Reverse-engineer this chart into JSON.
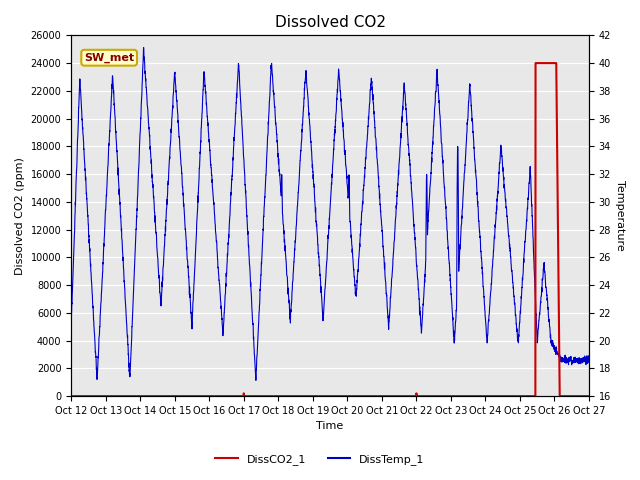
{
  "title": "Dissolved CO2",
  "ylabel_left": "Dissolved CO2 (ppm)",
  "ylabel_right": "Temperature",
  "xlabel": "Time",
  "ylim_left": [
    0,
    26000
  ],
  "ylim_right": [
    16,
    42
  ],
  "yticks_left": [
    0,
    2000,
    4000,
    6000,
    8000,
    10000,
    12000,
    14000,
    16000,
    18000,
    20000,
    22000,
    24000,
    26000
  ],
  "yticks_right": [
    16,
    18,
    20,
    22,
    24,
    26,
    28,
    30,
    32,
    34,
    36,
    38,
    40,
    42
  ],
  "xtick_labels": [
    "Oct 12",
    "Oct 13",
    "Oct 14",
    "Oct 15",
    "Oct 16",
    "Oct 17",
    "Oct 18",
    "Oct 19",
    "Oct 20",
    "Oct 21",
    "Oct 22",
    "Oct 23",
    "Oct 24",
    "Oct 25",
    "Oct 26",
    "Oct 27"
  ],
  "bg_color": "#e8e8e8",
  "blue_color": "#0000cc",
  "red_color": "#cc0000",
  "legend_label1": "DissCO2_1",
  "legend_label2": "DissTemp_1",
  "annotation_text": "SW_met",
  "annotation_bg": "#ffffcc",
  "annotation_border": "#ccaa00",
  "title_fontsize": 11,
  "axis_fontsize": 8,
  "tick_fontsize": 7
}
